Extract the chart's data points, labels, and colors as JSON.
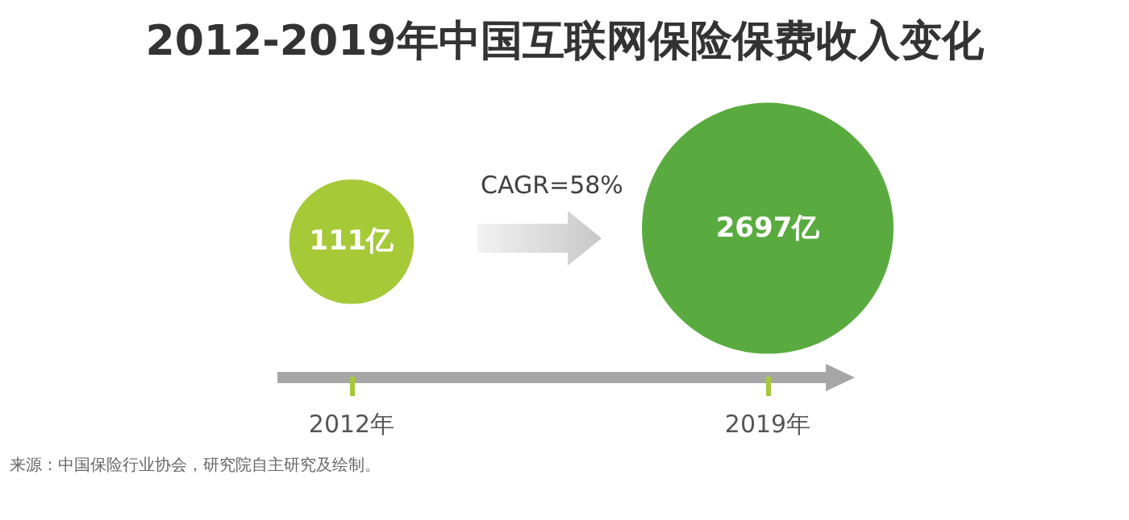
{
  "chart_data": {
    "type": "other",
    "title": "2012-2019年中国互联网保险保费收入变化",
    "categories": [
      "2012年",
      "2019年"
    ],
    "values": [
      111,
      2697
    ],
    "value_labels": [
      "111亿",
      "2697亿"
    ],
    "colors": [
      "#a6c938",
      "#5aab3f"
    ],
    "annotations": [
      "CAGR=58%",
      "来源：中国保险行业协会，研究院自主研究及绘制。"
    ]
  }
}
